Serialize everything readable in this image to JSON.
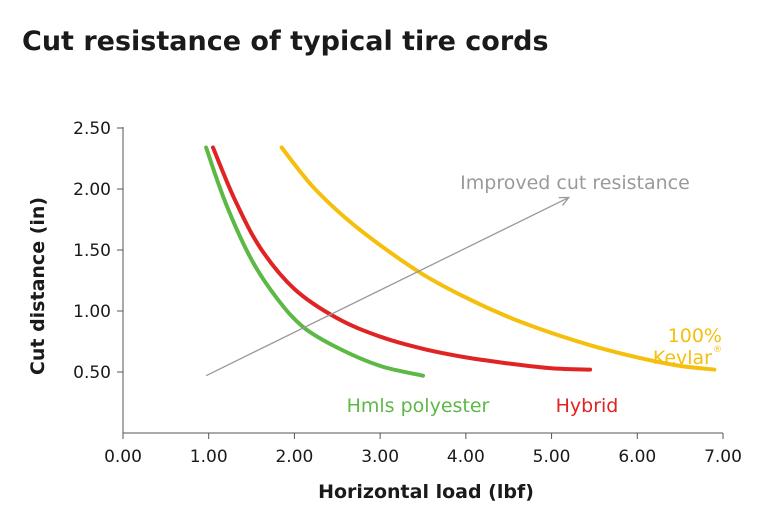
{
  "chart_data": {
    "type": "line",
    "title": "Cut resistance of typical tire cords",
    "xlabel": "Horizontal load (lbf)",
    "ylabel": "Cut distance (in)",
    "xlim": [
      0,
      7
    ],
    "ylim": [
      0,
      2.5
    ],
    "x_ticks": [
      "0.00",
      "1.00",
      "2.00",
      "3.00",
      "4.00",
      "5.00",
      "6.00",
      "7.00"
    ],
    "y_ticks": [
      "0.50",
      "1.00",
      "1.50",
      "2.00",
      "2.50"
    ],
    "grid": false,
    "legend": "inline labels",
    "series": [
      {
        "name": "Hmls polyester",
        "color": "#5cb946",
        "x": [
          0.97,
          1.2,
          1.5,
          1.8,
          2.1,
          2.5,
          3.0,
          3.5
        ],
        "y": [
          2.34,
          1.88,
          1.42,
          1.1,
          0.87,
          0.7,
          0.55,
          0.47
        ]
      },
      {
        "name": "Hybrid",
        "color": "#e02424",
        "x": [
          1.05,
          1.3,
          1.6,
          2.0,
          2.5,
          3.0,
          3.5,
          4.0,
          4.5,
          5.0,
          5.45
        ],
        "y": [
          2.34,
          1.92,
          1.52,
          1.18,
          0.94,
          0.79,
          0.69,
          0.62,
          0.57,
          0.53,
          0.52
        ]
      },
      {
        "name": "100% Kevlar®",
        "label_lines": [
          "100%",
          "Kevlar",
          "®"
        ],
        "color": "#f5bf0e",
        "x": [
          1.85,
          2.2,
          2.6,
          3.0,
          3.5,
          4.0,
          4.5,
          5.0,
          5.5,
          6.0,
          6.5,
          6.9
        ],
        "y": [
          2.34,
          2.03,
          1.76,
          1.54,
          1.3,
          1.11,
          0.95,
          0.82,
          0.71,
          0.62,
          0.55,
          0.52
        ]
      }
    ],
    "annotation": {
      "text": "Improved cut resistance",
      "color": "#9a9a9a",
      "arrow_from": [
        0.97,
        0.47
      ],
      "arrow_to": [
        5.2,
        1.93
      ]
    }
  }
}
